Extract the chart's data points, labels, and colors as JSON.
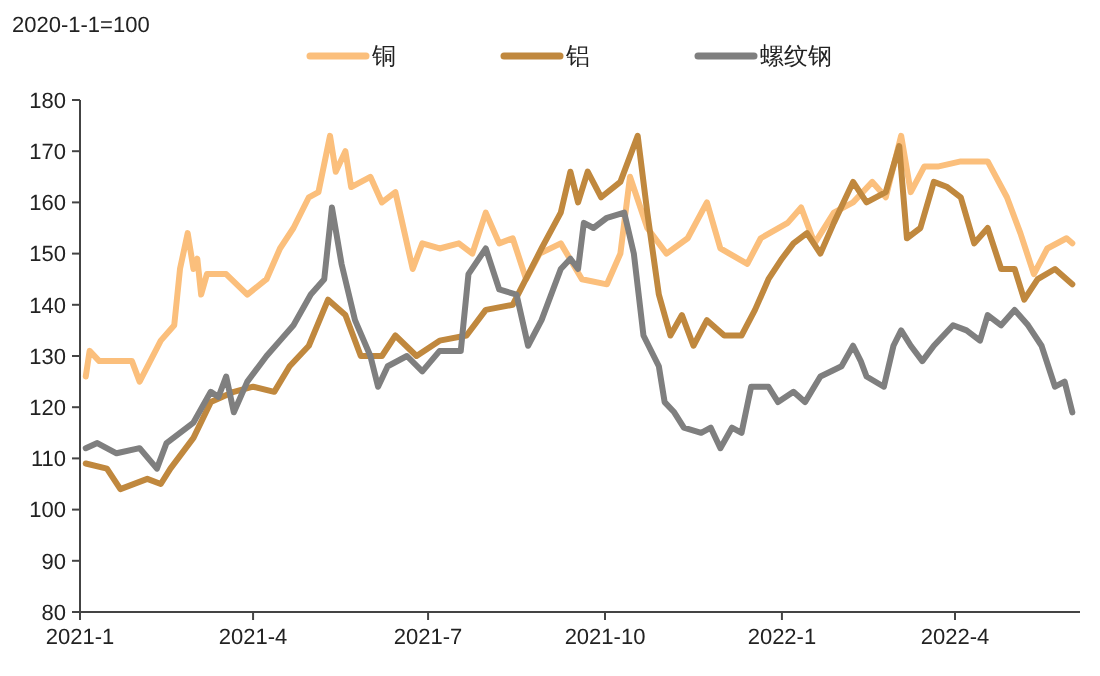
{
  "chart_data": {
    "type": "line",
    "ylabel": "2020-1-1=100",
    "legend": "top",
    "grid": false,
    "line_style": "solid",
    "marker": "none",
    "xlim": [
      "2021-01-01",
      "2022-06-05"
    ],
    "xticks": [
      {
        "value": "2021-01-01",
        "label": "2021-1"
      },
      {
        "value": "2021-04-01",
        "label": "2021-4"
      },
      {
        "value": "2021-07-01",
        "label": "2021-7"
      },
      {
        "value": "2021-10-01",
        "label": "2021-10"
      },
      {
        "value": "2022-01-01",
        "label": "2022-1"
      },
      {
        "value": "2022-04-01",
        "label": "2022-4"
      }
    ],
    "ylim": [
      80,
      180
    ],
    "yticks": [
      80,
      90,
      100,
      110,
      120,
      130,
      140,
      150,
      160,
      170,
      180
    ],
    "series": [
      {
        "name": "铜",
        "color": "#fbbf7c",
        "x": [
          "2021-01-04",
          "2021-01-06",
          "2021-01-11",
          "2021-01-28",
          "2021-02-01",
          "2021-02-12",
          "2021-02-19",
          "2021-02-22",
          "2021-02-26",
          "2021-03-01",
          "2021-03-03",
          "2021-03-05",
          "2021-03-08",
          "2021-03-18",
          "2021-03-29",
          "2021-04-08",
          "2021-04-15",
          "2021-04-22",
          "2021-04-30",
          "2021-05-05",
          "2021-05-11",
          "2021-05-14",
          "2021-05-19",
          "2021-05-22",
          "2021-06-01",
          "2021-06-07",
          "2021-06-14",
          "2021-06-17",
          "2021-06-20",
          "2021-06-23",
          "2021-06-28",
          "2021-07-07",
          "2021-07-17",
          "2021-07-24",
          "2021-07-31",
          "2021-08-07",
          "2021-08-14",
          "2021-08-21",
          "2021-08-28",
          "2021-09-08",
          "2021-09-19",
          "2021-10-02",
          "2021-10-09",
          "2021-10-14",
          "2021-10-23",
          "2021-11-02",
          "2021-11-13",
          "2021-11-23",
          "2021-11-30",
          "2021-12-14",
          "2021-12-21",
          "2022-01-04",
          "2022-01-11",
          "2022-01-18",
          "2022-01-28",
          "2022-02-07",
          "2022-02-17",
          "2022-02-24",
          "2022-03-04",
          "2022-03-09",
          "2022-03-16",
          "2022-03-23",
          "2022-04-04",
          "2022-04-18",
          "2022-04-28",
          "2022-05-05",
          "2022-05-12",
          "2022-05-19",
          "2022-05-29",
          "2022-06-01"
        ],
        "values": [
          126,
          131,
          129,
          129,
          125,
          133,
          136,
          147,
          154,
          147,
          149,
          142,
          146,
          146,
          142,
          145,
          151,
          155,
          161,
          162,
          173,
          166,
          170,
          163,
          165,
          160,
          162,
          157,
          152,
          147,
          152,
          151,
          152,
          150,
          158,
          152,
          153,
          145,
          150,
          152,
          145,
          144,
          150,
          165,
          155,
          150,
          153,
          160,
          151,
          148,
          153,
          156,
          159,
          152,
          158,
          160,
          164,
          161,
          173,
          162,
          167,
          167,
          168,
          168,
          161,
          154,
          146,
          151,
          153,
          152
        ]
      },
      {
        "name": "铝",
        "color": "#c0883e",
        "x": [
          "2021-01-04",
          "2021-01-15",
          "2021-01-22",
          "2021-02-05",
          "2021-02-12",
          "2021-02-17",
          "2021-03-01",
          "2021-03-10",
          "2021-03-22",
          "2021-04-01",
          "2021-04-12",
          "2021-04-20",
          "2021-04-30",
          "2021-05-10",
          "2021-05-19",
          "2021-05-27",
          "2021-06-07",
          "2021-06-14",
          "2021-06-25",
          "2021-07-07",
          "2021-07-21",
          "2021-07-31",
          "2021-08-14",
          "2021-08-29",
          "2021-09-08",
          "2021-09-13",
          "2021-09-17",
          "2021-09-22",
          "2021-09-29",
          "2021-10-09",
          "2021-10-18",
          "2021-10-23",
          "2021-10-29",
          "2021-11-04",
          "2021-11-10",
          "2021-11-16",
          "2021-11-23",
          "2021-12-02",
          "2021-12-11",
          "2021-12-18",
          "2021-12-25",
          "2022-01-01",
          "2022-01-07",
          "2022-01-14",
          "2022-01-21",
          "2022-01-28",
          "2022-02-07",
          "2022-02-14",
          "2022-02-24",
          "2022-03-03",
          "2022-03-07",
          "2022-03-14",
          "2022-03-21",
          "2022-03-28",
          "2022-04-04",
          "2022-04-11",
          "2022-04-18",
          "2022-04-25",
          "2022-05-02",
          "2022-05-07",
          "2022-05-14",
          "2022-05-23",
          "2022-06-01"
        ],
        "values": [
          109,
          108,
          104,
          106,
          105,
          108,
          114,
          121,
          123,
          124,
          123,
          128,
          132,
          141,
          138,
          130,
          130,
          134,
          130,
          133,
          134,
          139,
          140,
          151,
          158,
          166,
          160,
          166,
          161,
          164,
          173,
          158,
          142,
          134,
          138,
          132,
          137,
          134,
          134,
          139,
          145,
          149,
          152,
          154,
          150,
          156,
          164,
          160,
          162,
          171,
          153,
          155,
          164,
          163,
          161,
          152,
          155,
          147,
          147,
          141,
          145,
          147,
          144
        ]
      },
      {
        "name": "螺纹钢",
        "color": "#7f7f7f",
        "x": [
          "2021-01-04",
          "2021-01-10",
          "2021-01-20",
          "2021-02-01",
          "2021-02-10",
          "2021-02-15",
          "2021-03-01",
          "2021-03-10",
          "2021-03-14",
          "2021-03-18",
          "2021-03-22",
          "2021-03-29",
          "2021-04-08",
          "2021-04-15",
          "2021-04-22",
          "2021-05-01",
          "2021-05-08",
          "2021-05-12",
          "2021-05-17",
          "2021-05-24",
          "2021-06-01",
          "2021-06-05",
          "2021-06-10",
          "2021-06-20",
          "2021-06-28",
          "2021-07-07",
          "2021-07-18",
          "2021-07-22",
          "2021-07-31",
          "2021-08-07",
          "2021-08-16",
          "2021-08-22",
          "2021-08-29",
          "2021-09-08",
          "2021-09-13",
          "2021-09-17",
          "2021-09-20",
          "2021-09-25",
          "2021-10-02",
          "2021-10-11",
          "2021-10-16",
          "2021-10-21",
          "2021-10-29",
          "2021-11-01",
          "2021-11-06",
          "2021-11-11",
          "2021-11-20",
          "2021-11-25",
          "2021-11-30",
          "2021-12-06",
          "2021-12-11",
          "2021-12-16",
          "2021-12-25",
          "2021-12-30",
          "2022-01-07",
          "2022-01-13",
          "2022-01-21",
          "2022-02-01",
          "2022-02-07",
          "2022-02-11",
          "2022-02-14",
          "2022-02-23",
          "2022-02-28",
          "2022-03-04",
          "2022-03-09",
          "2022-03-15",
          "2022-03-21",
          "2022-03-31",
          "2022-04-07",
          "2022-04-14",
          "2022-04-18",
          "2022-04-25",
          "2022-05-02",
          "2022-05-09",
          "2022-05-16",
          "2022-05-23",
          "2022-05-28",
          "2022-06-01"
        ],
        "values": [
          112,
          113,
          111,
          112,
          108,
          113,
          117,
          123,
          122,
          126,
          119,
          125,
          130,
          133,
          136,
          142,
          145,
          159,
          148,
          137,
          130,
          124,
          128,
          130,
          127,
          131,
          131,
          146,
          151,
          143,
          142,
          132,
          137,
          147,
          149,
          147,
          156,
          155,
          157,
          158,
          150,
          134,
          128,
          121,
          119,
          116,
          115,
          116,
          112,
          116,
          115,
          124,
          124,
          121,
          123,
          121,
          126,
          128,
          132,
          129,
          126,
          124,
          132,
          135,
          132,
          129,
          132,
          136,
          135,
          133,
          138,
          136,
          139,
          136,
          132,
          124,
          125,
          119
        ]
      }
    ]
  }
}
